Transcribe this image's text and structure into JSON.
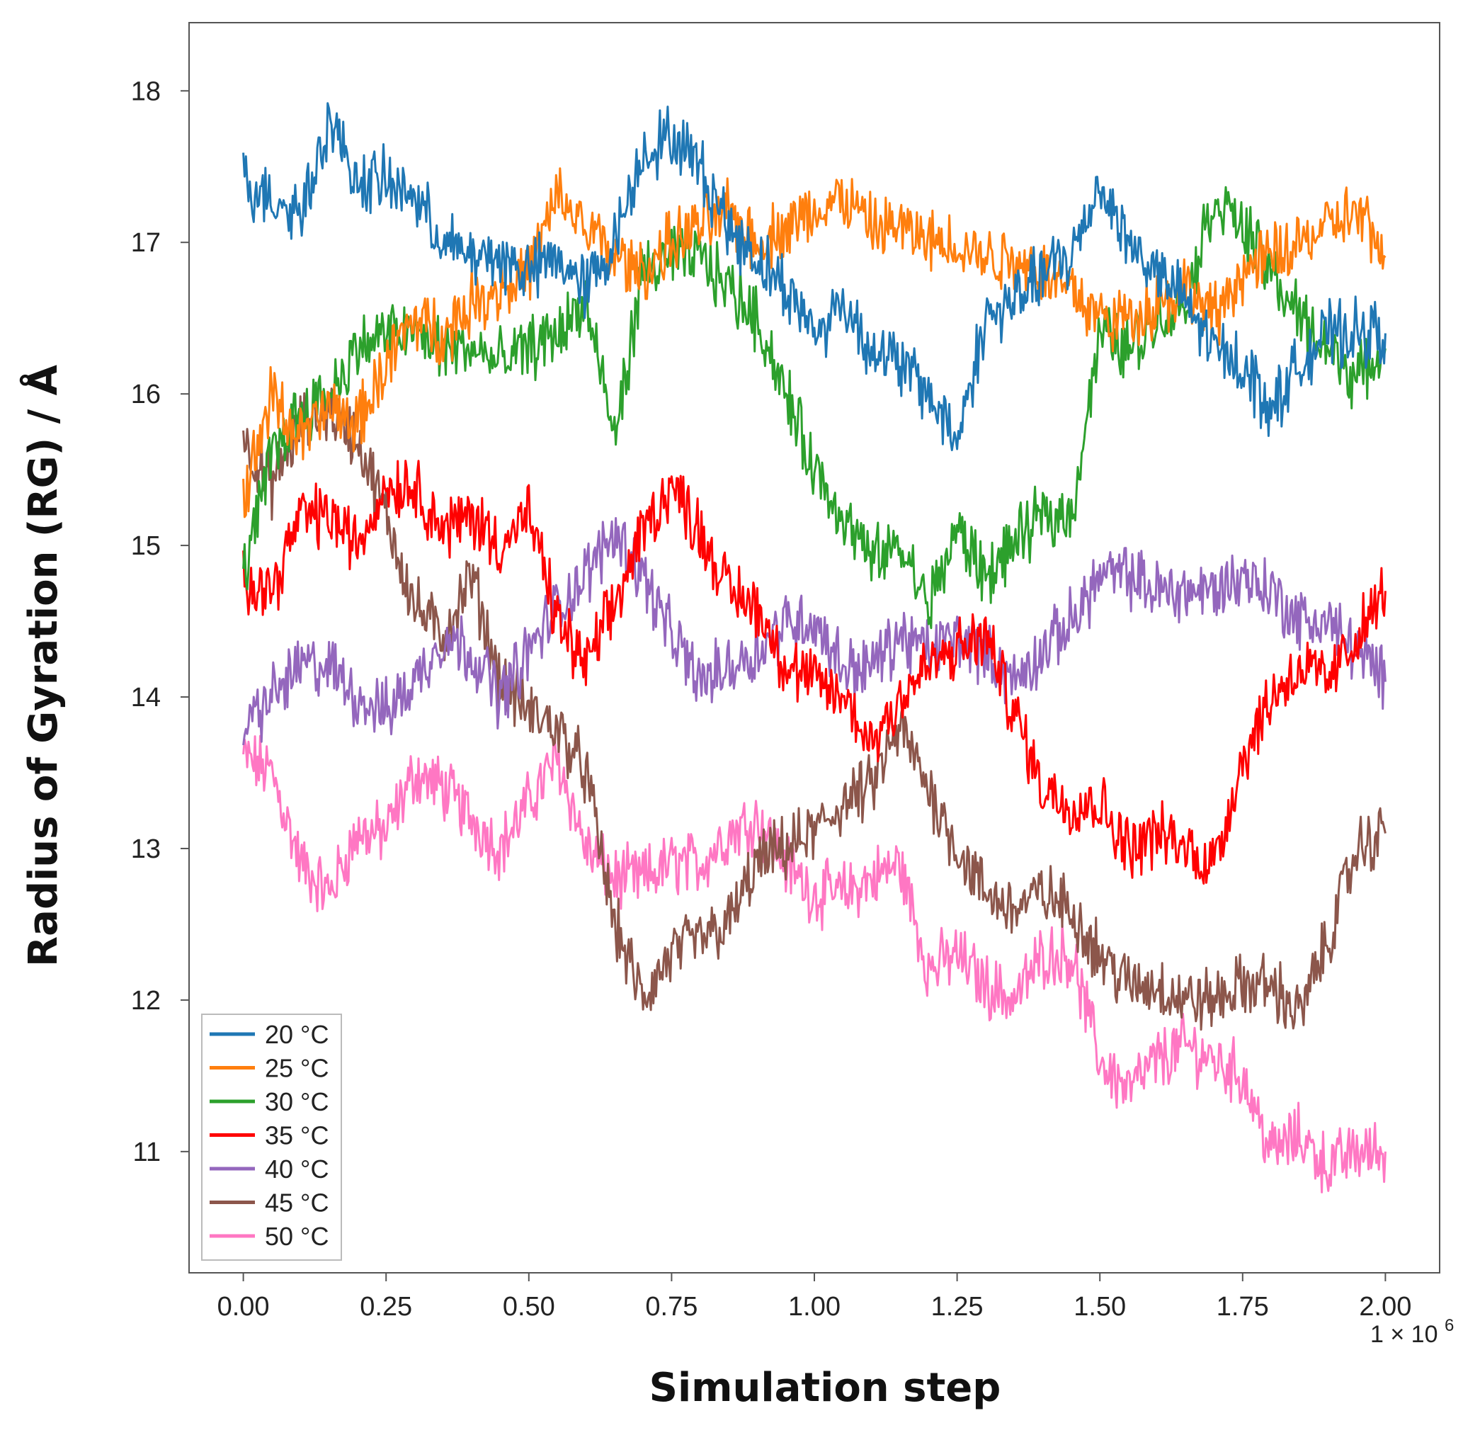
{
  "chart_data": {
    "type": "line",
    "title": "",
    "xlabel": "Simulation step",
    "ylabel": "Radius of Gyration (RG) / Å",
    "x_multiplier_label": "1 × 10",
    "x_multiplier_exp": "6",
    "xlim": [
      -0.095,
      2.095
    ],
    "ylim": [
      10.2,
      18.45
    ],
    "x_ticks": [
      0.0,
      0.25,
      0.5,
      0.75,
      1.0,
      1.25,
      1.5,
      1.75,
      2.0
    ],
    "x_tick_labels": [
      "0.00",
      "0.25",
      "0.50",
      "0.75",
      "1.00",
      "1.25",
      "1.50",
      "1.75",
      "2.00"
    ],
    "y_ticks": [
      11,
      12,
      13,
      14,
      15,
      16,
      17,
      18
    ],
    "y_tick_labels": [
      "11",
      "12",
      "13",
      "14",
      "15",
      "16",
      "17",
      "18"
    ],
    "grid": false,
    "legend_position": "bottom-left",
    "x": [
      0.0,
      0.05,
      0.1,
      0.15,
      0.2,
      0.25,
      0.3,
      0.35,
      0.4,
      0.45,
      0.5,
      0.55,
      0.6,
      0.65,
      0.7,
      0.75,
      0.8,
      0.85,
      0.9,
      0.95,
      1.0,
      1.05,
      1.1,
      1.15,
      1.2,
      1.25,
      1.3,
      1.35,
      1.4,
      1.45,
      1.5,
      1.55,
      1.6,
      1.65,
      1.7,
      1.75,
      1.8,
      1.85,
      1.9,
      1.95,
      2.0
    ],
    "series": [
      {
        "name": "20 °C",
        "color": "#1f77b4",
        "values": [
          17.4,
          17.3,
          17.2,
          17.8,
          17.4,
          17.4,
          17.3,
          17.0,
          16.9,
          16.9,
          16.8,
          16.9,
          16.7,
          17.0,
          17.6,
          17.7,
          17.5,
          17.1,
          16.9,
          16.7,
          16.4,
          16.6,
          16.3,
          16.2,
          16.0,
          15.7,
          16.5,
          16.6,
          16.8,
          16.9,
          17.4,
          17.0,
          16.8,
          16.6,
          16.3,
          16.2,
          15.9,
          16.2,
          16.4,
          16.4,
          16.4
        ]
      },
      {
        "name": "25 °C",
        "color": "#ff7f0e",
        "values": [
          15.3,
          16.0,
          15.7,
          15.9,
          15.8,
          16.2,
          16.5,
          16.4,
          16.6,
          16.7,
          16.8,
          17.3,
          17.1,
          16.9,
          16.8,
          17.0,
          17.1,
          17.2,
          17.0,
          17.1,
          17.2,
          17.3,
          17.1,
          17.1,
          17.0,
          17.0,
          16.9,
          16.9,
          16.8,
          16.7,
          16.5,
          16.5,
          16.6,
          16.7,
          16.5,
          16.8,
          16.9,
          17.0,
          17.1,
          17.2,
          16.9
        ]
      },
      {
        "name": "30 °C",
        "color": "#2ca02c",
        "values": [
          14.8,
          15.6,
          15.9,
          16.0,
          16.3,
          16.4,
          16.4,
          16.3,
          16.3,
          16.2,
          16.3,
          16.4,
          16.6,
          15.7,
          16.8,
          16.9,
          16.9,
          16.7,
          16.5,
          16.0,
          15.5,
          15.2,
          14.9,
          15.0,
          14.6,
          15.1,
          14.8,
          15.0,
          15.2,
          15.2,
          16.4,
          16.3,
          16.5,
          16.6,
          17.3,
          17.1,
          16.8,
          16.5,
          16.3,
          16.1,
          16.3
        ]
      },
      {
        "name": "35 °C",
        "color": "#ff0000",
        "values": [
          14.8,
          14.7,
          15.2,
          15.2,
          15.0,
          15.4,
          15.4,
          15.1,
          15.2,
          15.0,
          15.2,
          14.5,
          14.2,
          14.6,
          15.1,
          15.4,
          15.1,
          14.7,
          14.6,
          14.2,
          14.1,
          14.0,
          13.7,
          14.0,
          14.2,
          14.3,
          14.4,
          13.9,
          13.4,
          13.3,
          13.3,
          13.0,
          13.1,
          13.0,
          12.9,
          13.6,
          14.0,
          14.2,
          14.1,
          14.4,
          14.7
        ]
      },
      {
        "name": "40 °C",
        "color": "#9467bd",
        "values": [
          13.8,
          14.0,
          14.2,
          14.2,
          14.0,
          13.9,
          14.1,
          14.4,
          14.3,
          14.0,
          14.3,
          14.6,
          14.8,
          15.1,
          14.8,
          14.4,
          14.1,
          14.2,
          14.3,
          14.5,
          14.5,
          14.2,
          14.2,
          14.4,
          14.3,
          14.4,
          14.3,
          14.1,
          14.3,
          14.5,
          14.8,
          14.8,
          14.7,
          14.7,
          14.7,
          14.8,
          14.7,
          14.5,
          14.5,
          14.3,
          14.1
        ]
      },
      {
        "name": "45 °C",
        "color": "#8c564b",
        "values": [
          15.7,
          15.4,
          15.8,
          15.9,
          15.7,
          15.2,
          14.6,
          14.4,
          14.8,
          14.1,
          13.9,
          13.8,
          13.5,
          12.5,
          12.0,
          12.3,
          12.4,
          12.5,
          12.9,
          13.0,
          13.1,
          13.3,
          13.4,
          13.8,
          13.4,
          13.0,
          12.7,
          12.6,
          12.7,
          12.6,
          12.3,
          12.1,
          12.1,
          12.0,
          12.0,
          12.1,
          12.1,
          11.9,
          12.4,
          13.0,
          13.1
        ]
      },
      {
        "name": "50 °C",
        "color": "#ff77c3",
        "values": [
          13.6,
          13.5,
          12.9,
          12.7,
          13.1,
          13.1,
          13.5,
          13.4,
          13.2,
          13.0,
          13.3,
          13.6,
          13.0,
          12.8,
          12.8,
          12.9,
          12.9,
          13.1,
          13.2,
          12.9,
          12.7,
          12.7,
          12.8,
          12.9,
          12.2,
          12.3,
          12.1,
          12.0,
          12.3,
          12.3,
          11.6,
          11.4,
          11.6,
          11.7,
          11.6,
          11.5,
          11.0,
          11.1,
          10.9,
          11.0,
          11.0
        ]
      }
    ]
  }
}
